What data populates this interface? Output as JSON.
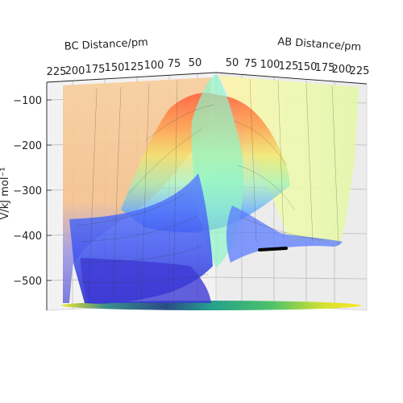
{
  "chart_data": {
    "type": "surface",
    "title": "",
    "xlabel": "AB Distance/pm",
    "ylabel": "BC Distance/pm",
    "zlabel": "V/kJ mol⁻¹",
    "x_ticks": [
      "50",
      "75",
      "100",
      "125",
      "150",
      "175",
      "200",
      "225"
    ],
    "y_ticks": [
      "225",
      "200",
      "175",
      "150",
      "125",
      "100",
      "75",
      "50"
    ],
    "z_ticks": [
      "−100",
      "−200",
      "−300",
      "−400",
      "−500"
    ],
    "x_range": [
      40,
      230
    ],
    "y_range": [
      40,
      230
    ],
    "z_range": [
      -570,
      -80
    ],
    "colormap": "jet",
    "surface_opacity": "semi-transparent",
    "contour_projection_colormap": "viridis",
    "trajectory_color": "#000000",
    "grid": true,
    "legend": "none"
  }
}
